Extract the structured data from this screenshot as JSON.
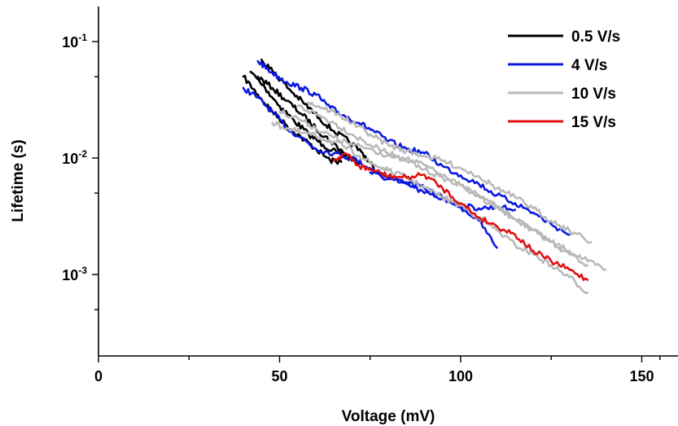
{
  "chart_data": {
    "type": "line",
    "xlabel": "Voltage (mV)",
    "ylabel": "Lifetime (s)",
    "xlim": [
      0,
      160
    ],
    "ylim": [
      0.0002,
      0.2
    ],
    "yscale": "log",
    "x_ticks": [
      0,
      50,
      100,
      150
    ],
    "x_tick_labels": [
      "0",
      "50",
      "100",
      "150"
    ],
    "y_ticks": [
      0.001,
      0.01,
      0.1
    ],
    "y_tick_labels": [
      {
        "base": "10",
        "exp": "-3"
      },
      {
        "base": "10",
        "exp": "-2"
      },
      {
        "base": "10",
        "exp": "-1"
      }
    ],
    "grid": false,
    "legend_position": "top-right",
    "series": [
      {
        "name": "0.5 V/s",
        "color": "#000000",
        "runs": [
          {
            "x": [
              40,
              44,
              48,
              52,
              56,
              60,
              64,
              67
            ],
            "y": [
              0.05,
              0.035,
              0.025,
              0.019,
              0.015,
              0.012,
              0.0095,
              0.0093
            ]
          },
          {
            "x": [
              42,
              46,
              50,
              54,
              58,
              62,
              66,
              70
            ],
            "y": [
              0.055,
              0.04,
              0.028,
              0.021,
              0.016,
              0.013,
              0.011,
              0.0095
            ]
          },
          {
            "x": [
              44,
              48,
              52,
              56,
              60,
              64,
              68,
              72
            ],
            "y": [
              0.05,
              0.04,
              0.031,
              0.024,
              0.018,
              0.014,
              0.011,
              0.009
            ]
          },
          {
            "x": [
              45,
              49,
              53,
              57,
              61,
              65,
              69,
              73,
              76
            ],
            "y": [
              0.07,
              0.052,
              0.038,
              0.029,
              0.022,
              0.017,
              0.014,
              0.011,
              0.0082
            ]
          }
        ]
      },
      {
        "name": "4 V/s",
        "color": "#0b19e0",
        "runs": [
          {
            "x": [
              40,
              44,
              48,
              52,
              56,
              60,
              65,
              70,
              75,
              80,
              85,
              90,
              95,
              100,
              105,
              110
            ],
            "y": [
              0.04,
              0.033,
              0.025,
              0.018,
              0.015,
              0.012,
              0.011,
              0.01,
              0.0082,
              0.0068,
              0.0062,
              0.0055,
              0.0046,
              0.0038,
              0.0029,
              0.0017
            ]
          },
          {
            "x": [
              44,
              48,
              52,
              56,
              60,
              64,
              68,
              72,
              76,
              80,
              85,
              90,
              95,
              100,
              105,
              110,
              115,
              120,
              125,
              130
            ],
            "y": [
              0.068,
              0.054,
              0.045,
              0.04,
              0.035,
              0.027,
              0.023,
              0.02,
              0.017,
              0.014,
              0.012,
              0.011,
              0.0085,
              0.0071,
              0.006,
              0.0048,
              0.0041,
              0.0034,
              0.0027,
              0.0022
            ]
          },
          {
            "x": [
              75,
              80,
              85,
              90,
              95,
              100,
              105,
              110,
              115
            ],
            "y": [
              0.0075,
              0.0066,
              0.006,
              0.005,
              0.0045,
              0.0039,
              0.0037,
              0.0038,
              0.0036
            ]
          }
        ]
      },
      {
        "name": "10 V/s",
        "color": "#b9b9b9",
        "runs": [
          {
            "x": [
              50,
              55,
              60,
              65,
              70,
              75,
              80,
              85,
              90,
              95,
              100,
              105,
              110,
              115,
              120,
              125,
              130,
              135,
              140
            ],
            "y": [
              0.025,
              0.022,
              0.018,
              0.015,
              0.013,
              0.012,
              0.0105,
              0.0095,
              0.008,
              0.0068,
              0.0058,
              0.0047,
              0.0038,
              0.003,
              0.0024,
              0.0019,
              0.0016,
              0.0013,
              0.0011
            ]
          },
          {
            "x": [
              55,
              60,
              65,
              70,
              75,
              80,
              85,
              90,
              95,
              100,
              105,
              110,
              115,
              120,
              125,
              130,
              135
            ],
            "y": [
              0.028,
              0.024,
              0.02,
              0.016,
              0.013,
              0.011,
              0.0098,
              0.0087,
              0.007,
              0.0058,
              0.0048,
              0.0038,
              0.003,
              0.0024,
              0.0019,
              0.0015,
              0.0012
            ]
          },
          {
            "x": [
              48,
              52,
              56,
              60,
              64,
              68,
              72,
              76,
              80,
              85,
              90,
              95,
              100,
              105,
              110,
              115,
              120,
              125,
              130,
              135
            ],
            "y": [
              0.02,
              0.018,
              0.0165,
              0.0155,
              0.014,
              0.0125,
              0.0105,
              0.0088,
              0.0078,
              0.0068,
              0.0056,
              0.0046,
              0.0039,
              0.0031,
              0.0024,
              0.0018,
              0.0015,
              0.0012,
              0.00095,
              0.0007
            ]
          },
          {
            "x": [
              58,
              62,
              66,
              70,
              75,
              80,
              85,
              90,
              95,
              100,
              105,
              110,
              115,
              120,
              125,
              130,
              136
            ],
            "y": [
              0.03,
              0.027,
              0.024,
              0.02,
              0.016,
              0.013,
              0.0115,
              0.0105,
              0.0095,
              0.0082,
              0.007,
              0.0055,
              0.0046,
              0.0037,
              0.0029,
              0.0024,
              0.0019
            ]
          }
        ]
      },
      {
        "name": "15 V/s",
        "color": "#e01010",
        "runs": [
          {
            "x": [
              65,
              68,
              72,
              76,
              80,
              85,
              90,
              95,
              100,
              105,
              110,
              115,
              120,
              125,
              130,
              135
            ],
            "y": [
              0.0095,
              0.011,
              0.0085,
              0.0078,
              0.007,
              0.0068,
              0.0072,
              0.0055,
              0.0041,
              0.0031,
              0.0026,
              0.0022,
              0.0016,
              0.0013,
              0.0011,
              0.0009
            ]
          }
        ]
      }
    ]
  }
}
